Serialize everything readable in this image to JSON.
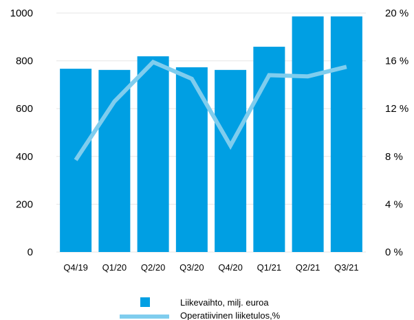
{
  "chart_data": {
    "type": "bar",
    "title": "",
    "categories": [
      "Q4/19",
      "Q1/20",
      "Q2/20",
      "Q3/20",
      "Q4/20",
      "Q1/21",
      "Q2/21",
      "Q3/21"
    ],
    "series": [
      {
        "name": "Liikevaihto, milj. euroa",
        "type": "bar",
        "axis": "left",
        "color": "#009fe3",
        "values": [
          767,
          762,
          819,
          773,
          762,
          859,
          986,
          986
        ]
      },
      {
        "name": "Operatiivinen liiketulos,%",
        "type": "line",
        "axis": "right",
        "color": "#7fcdee",
        "values": [
          7.7,
          12.6,
          15.9,
          14.5,
          8.9,
          14.8,
          14.7,
          15.5
        ]
      }
    ],
    "y_left": {
      "min": 0,
      "max": 1000,
      "ticks": [
        0,
        200,
        400,
        600,
        800,
        1000
      ],
      "tick_labels": [
        "0",
        "200",
        "400",
        "600",
        "800",
        "1000"
      ]
    },
    "y_right": {
      "min": 0,
      "max": 20,
      "ticks": [
        0,
        4,
        8,
        12,
        16,
        20
      ],
      "tick_labels": [
        "0 %",
        "4 %",
        "8 %",
        "12 %",
        "16 %",
        "20 %"
      ]
    },
    "grid": true,
    "legend_position": "bottom"
  }
}
